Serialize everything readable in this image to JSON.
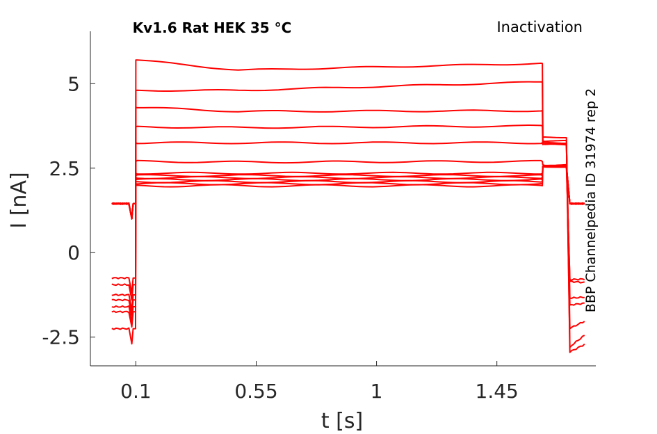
{
  "chart_data": {
    "type": "line",
    "title": "Kv1.6  Rat  HEK  35 °C",
    "protocol": "Inactivation",
    "source": "BBP Channelpedia ID 31974 rep 2",
    "xlabel": "t [s]",
    "ylabel": "I [nA]",
    "xlim": [
      -0.07,
      1.82
    ],
    "ylim": [
      -3.35,
      6.55
    ],
    "xticks": [
      0.1,
      0.55,
      1,
      1.45
    ],
    "xtick_labels": [
      "0.1",
      "0.55",
      "1",
      "1.45"
    ],
    "yticks": [
      -2.5,
      0,
      2.5,
      5
    ],
    "ytick_labels": [
      "-2.5",
      "0",
      "2.5",
      "5"
    ],
    "grid": false,
    "color": "#ff0000",
    "series": [
      {
        "pre": -2.25,
        "start": 5.7,
        "steady": 5.4,
        "end": 5.6,
        "tail": 3.42,
        "post": -2.95
      },
      {
        "pre": -1.75,
        "start": 4.8,
        "steady": 4.8,
        "end": 5.05,
        "tail": 3.3,
        "post": -2.8
      },
      {
        "pre": -1.6,
        "start": 4.3,
        "steady": 4.18,
        "end": 4.2,
        "tail": 3.25,
        "post": -2.25
      },
      {
        "pre": -1.4,
        "start": 3.72,
        "steady": 3.7,
        "end": 3.75,
        "tail": 3.22,
        "post": -1.55
      },
      {
        "pre": -1.25,
        "start": 3.25,
        "steady": 3.25,
        "end": 3.25,
        "tail": 3.2,
        "post": -1.35
      },
      {
        "pre": -0.95,
        "start": 2.7,
        "steady": 2.68,
        "end": 2.7,
        "tail": 2.6,
        "post": -0.85
      },
      {
        "pre": -0.75,
        "start": 2.35,
        "steady": 2.35,
        "end": 2.35,
        "tail": 2.55,
        "post": -0.8
      },
      {
        "pre": 1.45,
        "start": 2.28,
        "steady": 2.28,
        "end": 2.28,
        "tail": 2.55,
        "post": 1.45
      },
      {
        "pre": 1.45,
        "start": 2.22,
        "steady": 2.22,
        "end": 2.22,
        "tail": 2.55,
        "post": 1.45
      },
      {
        "pre": 1.45,
        "start": 2.16,
        "steady": 2.16,
        "end": 2.16,
        "tail": 2.55,
        "post": 1.45
      },
      {
        "pre": 1.45,
        "start": 2.1,
        "steady": 2.1,
        "end": 2.1,
        "tail": 2.55,
        "post": 1.45
      },
      {
        "pre": 1.45,
        "start": 2.04,
        "steady": 2.04,
        "end": 2.04,
        "tail": 2.55,
        "post": 1.45
      },
      {
        "pre": 1.45,
        "start": 1.98,
        "steady": 1.98,
        "end": 1.98,
        "tail": 2.55,
        "post": 1.45
      }
    ]
  }
}
